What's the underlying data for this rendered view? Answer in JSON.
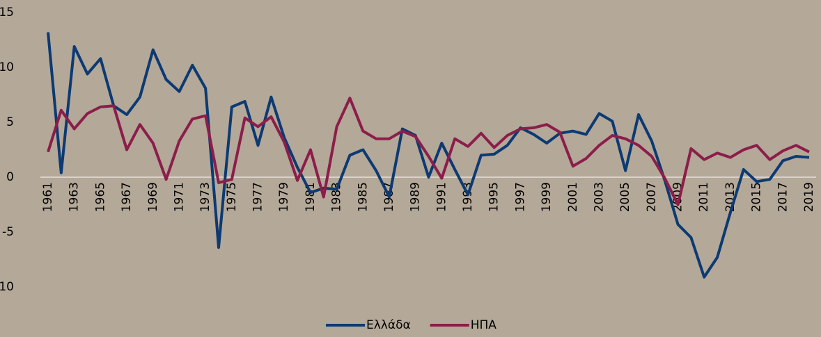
{
  "chart_data": {
    "type": "line",
    "categories": [
      "1961",
      null,
      "1963",
      null,
      "1965",
      null,
      "1967",
      null,
      "1969",
      null,
      "1971",
      null,
      "1973",
      null,
      "1975",
      null,
      "1977",
      null,
      "1979",
      null,
      "1981",
      null,
      "1983",
      null,
      "1985",
      null,
      "1987",
      null,
      "1989",
      null,
      "1991",
      null,
      "1993",
      null,
      "1995",
      null,
      "1997",
      null,
      "1999",
      null,
      "2001",
      null,
      "2003",
      null,
      "2005",
      null,
      "2007",
      null,
      "2009",
      null,
      "2011",
      null,
      "2013",
      null,
      "2015",
      null,
      "2017",
      null,
      "2019"
    ],
    "series": [
      {
        "name": "Ελλάδα",
        "color": "#0c3a73",
        "values": [
          13.2,
          0.4,
          11.9,
          9.4,
          10.8,
          6.5,
          5.7,
          7.3,
          11.6,
          8.9,
          7.8,
          10.2,
          8.1,
          -6.4,
          6.4,
          6.9,
          2.9,
          7.3,
          3.6,
          0.9,
          -1.4,
          -1.0,
          -1.1,
          2.0,
          2.5,
          0.6,
          -1.8,
          4.4,
          3.8,
          0.0,
          3.1,
          0.7,
          -1.6,
          2.0,
          2.1,
          2.9,
          4.5,
          3.9,
          3.1,
          4.0,
          4.2,
          3.9,
          5.8,
          5.1,
          0.6,
          5.7,
          3.3,
          -0.3,
          -4.3,
          -5.5,
          -9.1,
          -7.3,
          -3.2,
          0.7,
          -0.4,
          -0.2,
          1.5,
          1.9,
          1.8
        ]
      },
      {
        "name": "ΗΠΑ",
        "color": "#8c1d4a",
        "values": [
          2.3,
          6.1,
          4.4,
          5.8,
          6.4,
          6.5,
          2.5,
          4.8,
          3.1,
          -0.2,
          3.3,
          5.3,
          5.6,
          -0.5,
          -0.2,
          5.4,
          4.6,
          5.5,
          3.2,
          -0.3,
          2.5,
          -1.8,
          4.6,
          7.2,
          4.2,
          3.5,
          3.5,
          4.2,
          3.7,
          1.9,
          -0.1,
          3.5,
          2.8,
          4.0,
          2.7,
          3.8,
          4.4,
          4.5,
          4.8,
          4.1,
          1.0,
          1.7,
          2.9,
          3.8,
          3.5,
          2.9,
          1.9,
          -0.1,
          -2.5,
          2.6,
          1.6,
          2.2,
          1.8,
          2.5,
          2.9,
          1.6,
          2.4,
          2.9,
          2.3
        ]
      }
    ],
    "ylim": [
      -10,
      15
    ],
    "yticks": [
      -10,
      -5,
      0,
      5,
      10,
      15
    ],
    "grid": false,
    "legend": "bottom"
  }
}
